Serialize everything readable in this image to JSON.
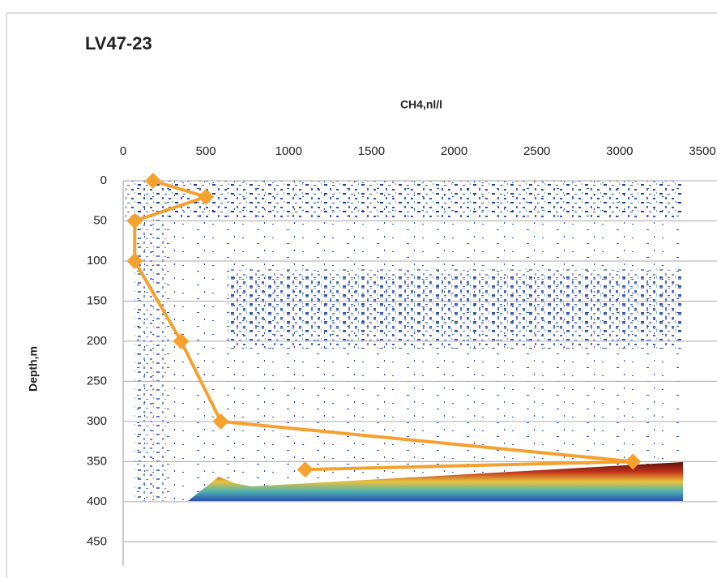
{
  "chart_data": {
    "type": "line",
    "title": "LV47-23",
    "x_label": "CH4,nl/l",
    "y_label": "Depth,m",
    "x": [
      180,
      500,
      70,
      70,
      350,
      590,
      3080,
      1100
    ],
    "series": [
      {
        "color": "#f4a12e",
        "values": [
          0,
          20,
          50,
          100,
          200,
          300,
          350,
          360
        ]
      }
    ],
    "xlim": [
      0,
      3500
    ],
    "xticks": [
      0,
      500,
      1000,
      1500,
      2000,
      2500,
      3000,
      3500
    ],
    "ylim": [
      0,
      480
    ],
    "yticks": [
      0,
      50,
      100,
      150,
      200,
      250,
      300,
      350,
      400,
      450
    ],
    "y_reversed": true,
    "x_axis_position": "top",
    "grid": true
  }
}
